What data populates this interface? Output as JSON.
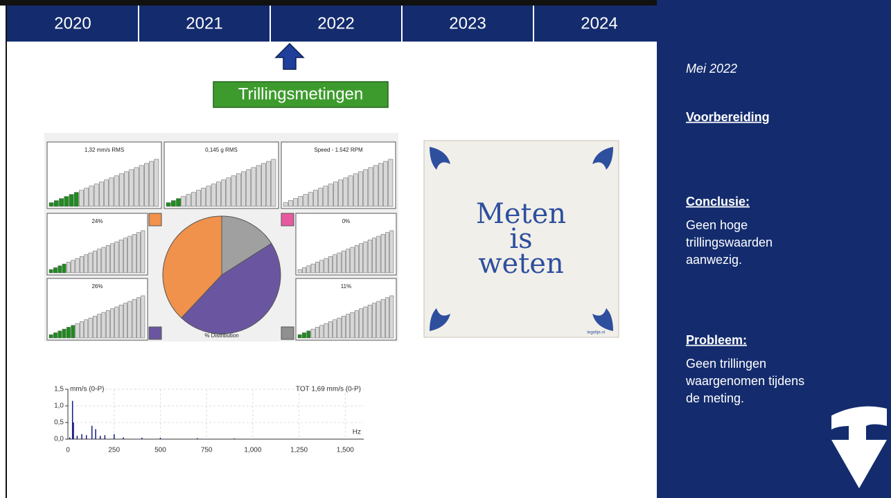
{
  "timeline": {
    "years": [
      "2020",
      "2021",
      "2022",
      "2023",
      "2024"
    ],
    "label": "Trillingsmetingen"
  },
  "dashboard": {
    "panels": [
      {
        "label": "1,32 mm/s RMS",
        "level": 6
      },
      {
        "label": "0,145 g RMS",
        "level": 3
      },
      {
        "label": "Speed - 1.542 RPM",
        "level": 0
      },
      {
        "label": "24%",
        "level": 4
      },
      {
        "label": "0%",
        "level": 0
      },
      {
        "label": "26%",
        "level": 6
      },
      {
        "label": "11%",
        "level": 3
      }
    ],
    "pie": {
      "label": "% Distribution",
      "values": [
        16,
        46,
        38
      ],
      "colors": [
        "#a0a0a0",
        "#6a56a0",
        "#f0914c"
      ]
    }
  },
  "tile": {
    "lines": [
      "Meten",
      "is",
      "weten"
    ],
    "credit": "tegeltje.nl"
  },
  "spectrum": {
    "unit_label": "mm/s (0-P)",
    "total": "TOT 1,69 mm/s (0-P)",
    "x_unit": "Hz",
    "xlim": [
      0,
      1600
    ],
    "ylim": [
      0,
      1.5
    ],
    "xticks": [
      0,
      250,
      500,
      750,
      {
        "value": 1000,
        "label": "1,000"
      },
      {
        "value": 1250,
        "label": "1,250"
      },
      {
        "value": 1500,
        "label": "1,500"
      }
    ],
    "yticks": [
      {
        "value": 0,
        "label": "0,0"
      },
      {
        "value": 0.5,
        "label": "0,5"
      },
      {
        "value": 1,
        "label": "1,0"
      },
      {
        "value": 1.5,
        "label": "1,5"
      }
    ],
    "x": [
      10,
      25,
      30,
      50,
      75,
      100,
      130,
      150,
      175,
      200,
      250,
      300,
      400,
      500,
      700,
      900
    ],
    "y": [
      0.05,
      1.15,
      0.5,
      0.1,
      0.15,
      0.12,
      0.4,
      0.3,
      0.1,
      0.12,
      0.15,
      0.05,
      0.04,
      0.04,
      0.03,
      0.02
    ]
  },
  "sidebar": {
    "date": "Mei 2022",
    "prep": "Voorbereiding",
    "conclusion_title": "Conclusie:",
    "conclusion_lines": [
      "Geen hoge",
      "trillingswaarden",
      "aanwezig."
    ],
    "problem_title": "Probleem:",
    "problem_lines": [
      "Geen trillingen",
      "waargenomen tijdens",
      "de meting."
    ]
  }
}
